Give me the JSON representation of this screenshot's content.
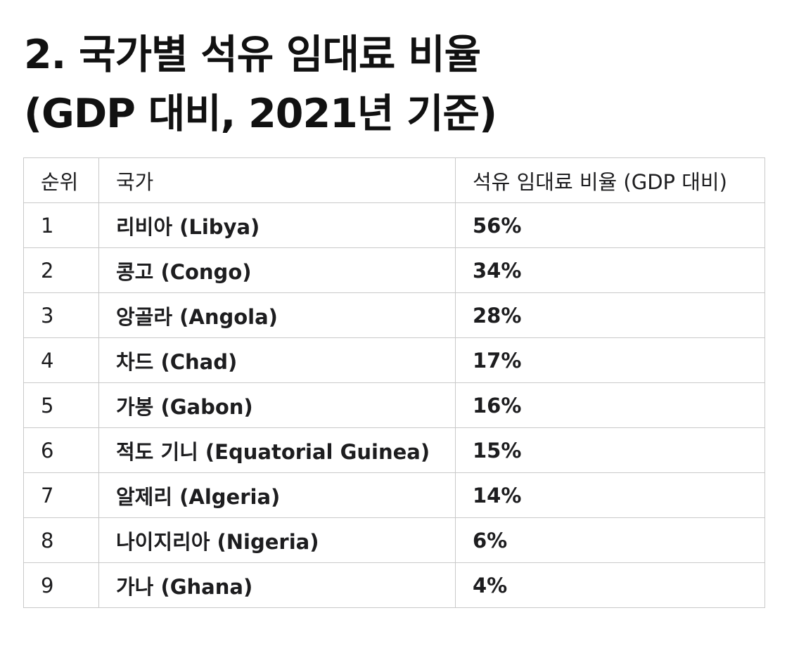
{
  "title": {
    "line1": "2. 국가별 석유 임대료 비율",
    "line2": "(GDP 대비, 2021년 기준)"
  },
  "table": {
    "headers": {
      "rank": "순위",
      "country": "국가",
      "ratio": "석유 임대료 비율 (GDP 대비)"
    },
    "rows": [
      {
        "rank": "1",
        "country": "리비아 (Libya)",
        "ratio": "56%"
      },
      {
        "rank": "2",
        "country": "콩고 (Congo)",
        "ratio": "34%"
      },
      {
        "rank": "3",
        "country": "앙골라 (Angola)",
        "ratio": "28%"
      },
      {
        "rank": "4",
        "country": "차드 (Chad)",
        "ratio": "17%"
      },
      {
        "rank": "5",
        "country": "가봉 (Gabon)",
        "ratio": "16%"
      },
      {
        "rank": "6",
        "country": "적도 기니 (Equatorial Guinea)",
        "ratio": "15%"
      },
      {
        "rank": "7",
        "country": "알제리 (Algeria)",
        "ratio": "14%"
      },
      {
        "rank": "8",
        "country": "나이지리아 (Nigeria)",
        "ratio": "6%"
      },
      {
        "rank": "9",
        "country": "가나 (Ghana)",
        "ratio": "4%"
      }
    ]
  }
}
